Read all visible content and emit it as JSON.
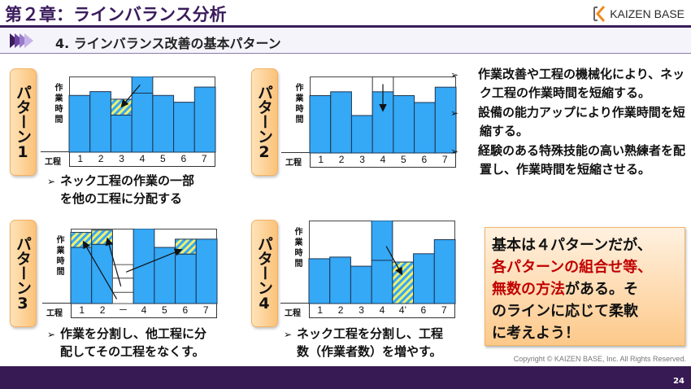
{
  "header": {
    "title": "第２章：ラインバランス分析",
    "logo_text": "KAIZEN BASE",
    "accent": "#3a1c5c"
  },
  "section": {
    "title": "4. ラインバランス改善の基本パターン"
  },
  "common": {
    "y_label": "作業時間",
    "x_head": "工程"
  },
  "patterns": [
    {
      "label": "パターン1",
      "note": [
        "ネック工程の作業の一部",
        "を他の工程に分配する"
      ],
      "categories": [
        "1",
        "2",
        "3",
        "4",
        "5",
        "6",
        "7"
      ],
      "bars": [
        {
          "v": 75
        },
        {
          "v": 80
        },
        {
          "v": 49,
          "hatch": 70
        },
        {
          "v": 78,
          "top": 100
        },
        {
          "v": 75
        },
        {
          "v": 66
        },
        {
          "v": 86
        }
      ],
      "arrows": [
        [
          3.4,
          89,
          2.5,
          60
        ]
      ]
    },
    {
      "label": "パターン2",
      "note": [],
      "categories": [
        "1",
        "2",
        "3",
        "4",
        "5",
        "6",
        "7"
      ],
      "bars": [
        {
          "v": 75
        },
        {
          "v": 80
        },
        {
          "v": 49
        },
        {
          "v": 80,
          "ghost": 100
        },
        {
          "v": 75
        },
        {
          "v": 66
        },
        {
          "v": 86
        }
      ],
      "arrows": [
        [
          3.5,
          90,
          3.5,
          55
        ]
      ]
    },
    {
      "label": "パターン3",
      "note": [
        "作業を分割し、他工程に分",
        "配してその工程をなくす。"
      ],
      "categories": [
        "1",
        "2",
        "－",
        "4",
        "5",
        "6",
        "7"
      ],
      "bars": [
        {
          "v": 75,
          "hatch": 95
        },
        {
          "v": 79,
          "hatch": 98
        },
        {
          "v": 0,
          "levels": [
            52,
            34,
            15
          ]
        },
        {
          "v": 100
        },
        {
          "v": 75
        },
        {
          "v": 66,
          "hatch": 86
        },
        {
          "v": 86
        }
      ],
      "arrows": [
        [
          2.2,
          6,
          0.6,
          83
        ],
        [
          2.4,
          23,
          1.75,
          87
        ],
        [
          2.65,
          42,
          5.3,
          72
        ]
      ]
    },
    {
      "label": "パターン4",
      "note": [
        "ネック工程を分割し、工程",
        "数（作業者数）を増やす。"
      ],
      "categories": [
        "1",
        "2",
        "3",
        "4",
        "4’",
        "6",
        "7"
      ],
      "bars": [
        {
          "v": 54
        },
        {
          "v": 56
        },
        {
          "v": 45
        },
        {
          "v": 52,
          "top": 100
        },
        {
          "v": 0,
          "hatch": 50
        },
        {
          "v": 60
        },
        {
          "v": 77
        }
      ],
      "arrows": [
        [
          3.7,
          69,
          4.45,
          35
        ]
      ]
    }
  ],
  "bullets": [
    "作業改善や工程の機械化により、ネック工程の作業時間を短縮する。",
    "設備の能力アップにより作業時間を短縮する。",
    "経験のある特殊技能の高い熟練者を配置し、作業時間を短縮させる。"
  ],
  "callout": {
    "l1": "基本は４パターンだが、",
    "l2_red": "各パターンの組合せ等、",
    "l3_red": "無数の方法",
    "l3": "がある。そ",
    "l4": "のラインに応じて柔軟",
    "l5": "に考えよう！",
    "red": "#c00000"
  },
  "footer": {
    "copyright": "Copyright ©  KAIZEN BASE, Inc.  All Rights Reserved.",
    "page": "24"
  },
  "colors": {
    "bar": "#35a8f6",
    "hatch_a": "#f2f06a",
    "hatch_b": "#35a8f6"
  }
}
